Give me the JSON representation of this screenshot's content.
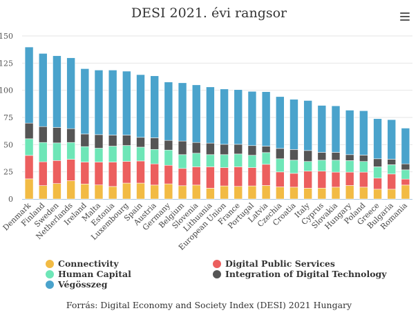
{
  "chart_data": {
    "type": "bar",
    "stacked": true,
    "title": "DESI 2021. évi rangsor",
    "xlabel": "",
    "ylabel": "",
    "ylim": [
      0,
      150
    ],
    "yticks": [
      0,
      25,
      50,
      75,
      100,
      125,
      150
    ],
    "grid": true,
    "legend_position": "bottom",
    "categories": [
      "Denmark",
      "Finland",
      "Sweden",
      "Netherlands",
      "Ireland",
      "Malta",
      "Estonia",
      "Luxembourg",
      "Spain",
      "Austria",
      "Germany",
      "Belgium",
      "Slovenia",
      "Lithuania",
      "European Union",
      "France",
      "Portugal",
      "Latvia",
      "Czechia",
      "Croatia",
      "Italy",
      "Cyprus",
      "Slovakia",
      "Hungary",
      "Poland",
      "Greece",
      "Bulgaria",
      "Romania"
    ],
    "series": [
      {
        "name": "Connectivity",
        "color": "#f2bb44",
        "values": [
          18.5,
          12.3,
          14.2,
          16.8,
          13.8,
          12.9,
          11.5,
          14.6,
          14.6,
          12.8,
          13.9,
          12.2,
          12.8,
          9.9,
          12.0,
          11.6,
          12.0,
          12.4,
          11.1,
          10.9,
          9.9,
          10.0,
          10.9,
          12.4,
          10.9,
          9.0,
          9.0,
          12.8
        ]
      },
      {
        "name": "Digital Public Services",
        "color": "#ec5f5e",
        "values": [
          21.6,
          21.9,
          21.2,
          19.7,
          20.2,
          21.1,
          22.5,
          20.0,
          20.4,
          19.5,
          17.1,
          15.9,
          16.8,
          19.7,
          16.9,
          18.0,
          16.9,
          19.5,
          13.8,
          12.7,
          15.7,
          15.6,
          13.8,
          12.3,
          13.8,
          10.2,
          14.0,
          5.5
        ]
      },
      {
        "name": "Human Capital",
        "color": "#6ee6b7",
        "values": [
          15.3,
          17.8,
          16.2,
          15.5,
          14.2,
          12.7,
          14.6,
          14.6,
          12.7,
          13.3,
          14.0,
          12.7,
          12.5,
          11.2,
          11.9,
          11.8,
          11.3,
          10.8,
          12.1,
          12.1,
          8.9,
          10.1,
          11.0,
          10.6,
          9.8,
          10.4,
          8.5,
          8.5
        ]
      },
      {
        "name": "Integration of Digital Technology",
        "color": "#555555",
        "values": [
          14.4,
          14.6,
          14.2,
          12.7,
          11.6,
          12.5,
          10.2,
          9.6,
          9.0,
          10.7,
          8.9,
          12.5,
          9.9,
          10.6,
          9.5,
          8.9,
          8.9,
          5.9,
          9.5,
          9.8,
          10.1,
          7.2,
          7.2,
          5.5,
          5.9,
          7.4,
          5.1,
          5.5
        ]
      },
      {
        "name": "Végösszeg",
        "color": "#4aa3cc",
        "values": [
          70.0,
          67.3,
          66.0,
          65.2,
          60.1,
          59.4,
          59.8,
          58.8,
          57.7,
          57.0,
          53.7,
          53.6,
          53.0,
          51.7,
          50.9,
          50.3,
          49.9,
          50.1,
          47.7,
          46.2,
          46.0,
          43.2,
          42.8,
          40.9,
          40.8,
          36.9,
          36.4,
          32.9
        ]
      }
    ],
    "source": "Forrás: Digital Economy and Society Index (DESI) 2021 Hungary"
  },
  "menu_icon": "hamburger-menu-icon"
}
